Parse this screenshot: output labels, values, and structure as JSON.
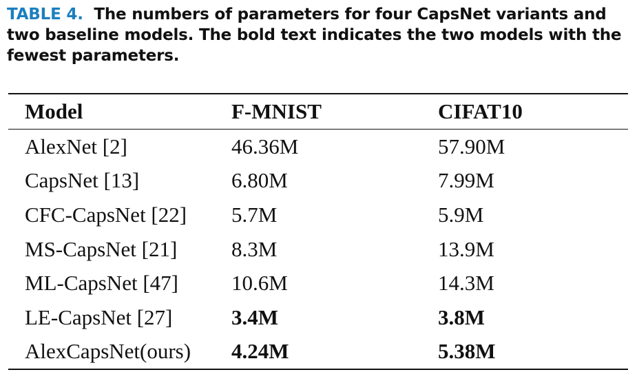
{
  "caption": {
    "label": "TABLE 4.",
    "text": "The numbers of parameters for four CapsNet variants and two baseline models. The bold text indicates the two models with the fewest parameters."
  },
  "table": {
    "headers": [
      "Model",
      "F-MNIST",
      "CIFAT10"
    ],
    "rows": [
      {
        "model": "AlexNet [2]",
        "fmnist": "46.36M",
        "cifar": "57.90M",
        "bold": false
      },
      {
        "model": "CapsNet [13]",
        "fmnist": "6.80M",
        "cifar": "7.99M",
        "bold": false
      },
      {
        "model": "CFC-CapsNet [22]",
        "fmnist": "5.7M",
        "cifar": "5.9M",
        "bold": false
      },
      {
        "model": "MS-CapsNet [21]",
        "fmnist": "8.3M",
        "cifar": "13.9M",
        "bold": false
      },
      {
        "model": "ML-CapsNet [47]",
        "fmnist": "10.6M",
        "cifar": "14.3M",
        "bold": false
      },
      {
        "model": "LE-CapsNet [27]",
        "fmnist": "3.4M",
        "cifar": "3.8M",
        "bold": true
      },
      {
        "model": "AlexCapsNet(ours)",
        "fmnist": "4.24M",
        "cifar": "5.38M",
        "bold": true
      }
    ]
  }
}
